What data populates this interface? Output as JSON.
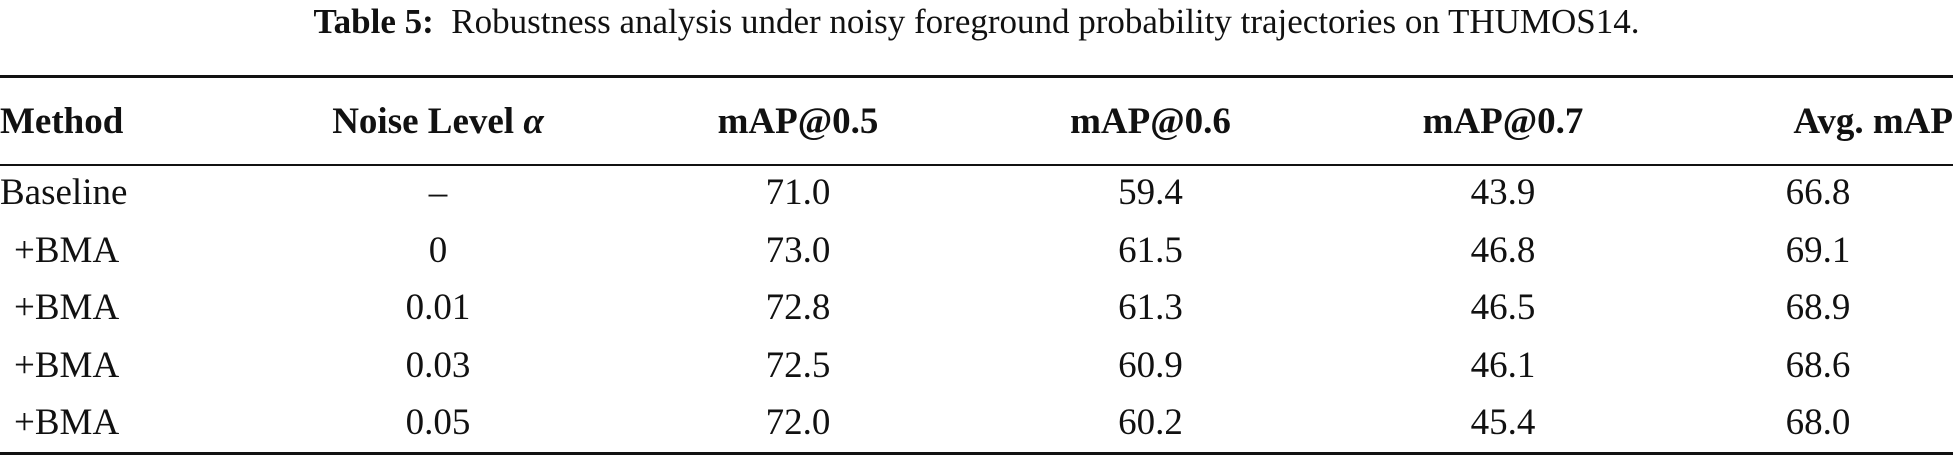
{
  "caption": {
    "label": "Table 5:",
    "text": "Robustness analysis under noisy foreground probability trajectories on THUMOS14."
  },
  "table": {
    "headers": {
      "method": "Method",
      "noise_prefix": "Noise Level ",
      "noise_symbol": "α",
      "map05": "mAP@0.5",
      "map06": "mAP@0.6",
      "map07": "mAP@0.7",
      "avg": "Avg. mAP"
    },
    "rows": [
      {
        "method": "Baseline",
        "noise": "–",
        "map05": "71.0",
        "map06": "59.4",
        "map07": "43.9",
        "avg": "66.8"
      },
      {
        "method": "+BMA",
        "noise": "0",
        "map05": "73.0",
        "map06": "61.5",
        "map07": "46.8",
        "avg": "69.1"
      },
      {
        "method": "+BMA",
        "noise": "0.01",
        "map05": "72.8",
        "map06": "61.3",
        "map07": "46.5",
        "avg": "68.9"
      },
      {
        "method": "+BMA",
        "noise": "0.03",
        "map05": "72.5",
        "map06": "60.9",
        "map07": "46.1",
        "avg": "68.6"
      },
      {
        "method": "+BMA",
        "noise": "0.05",
        "map05": "72.0",
        "map06": "60.2",
        "map07": "45.4",
        "avg": "68.0"
      }
    ]
  }
}
